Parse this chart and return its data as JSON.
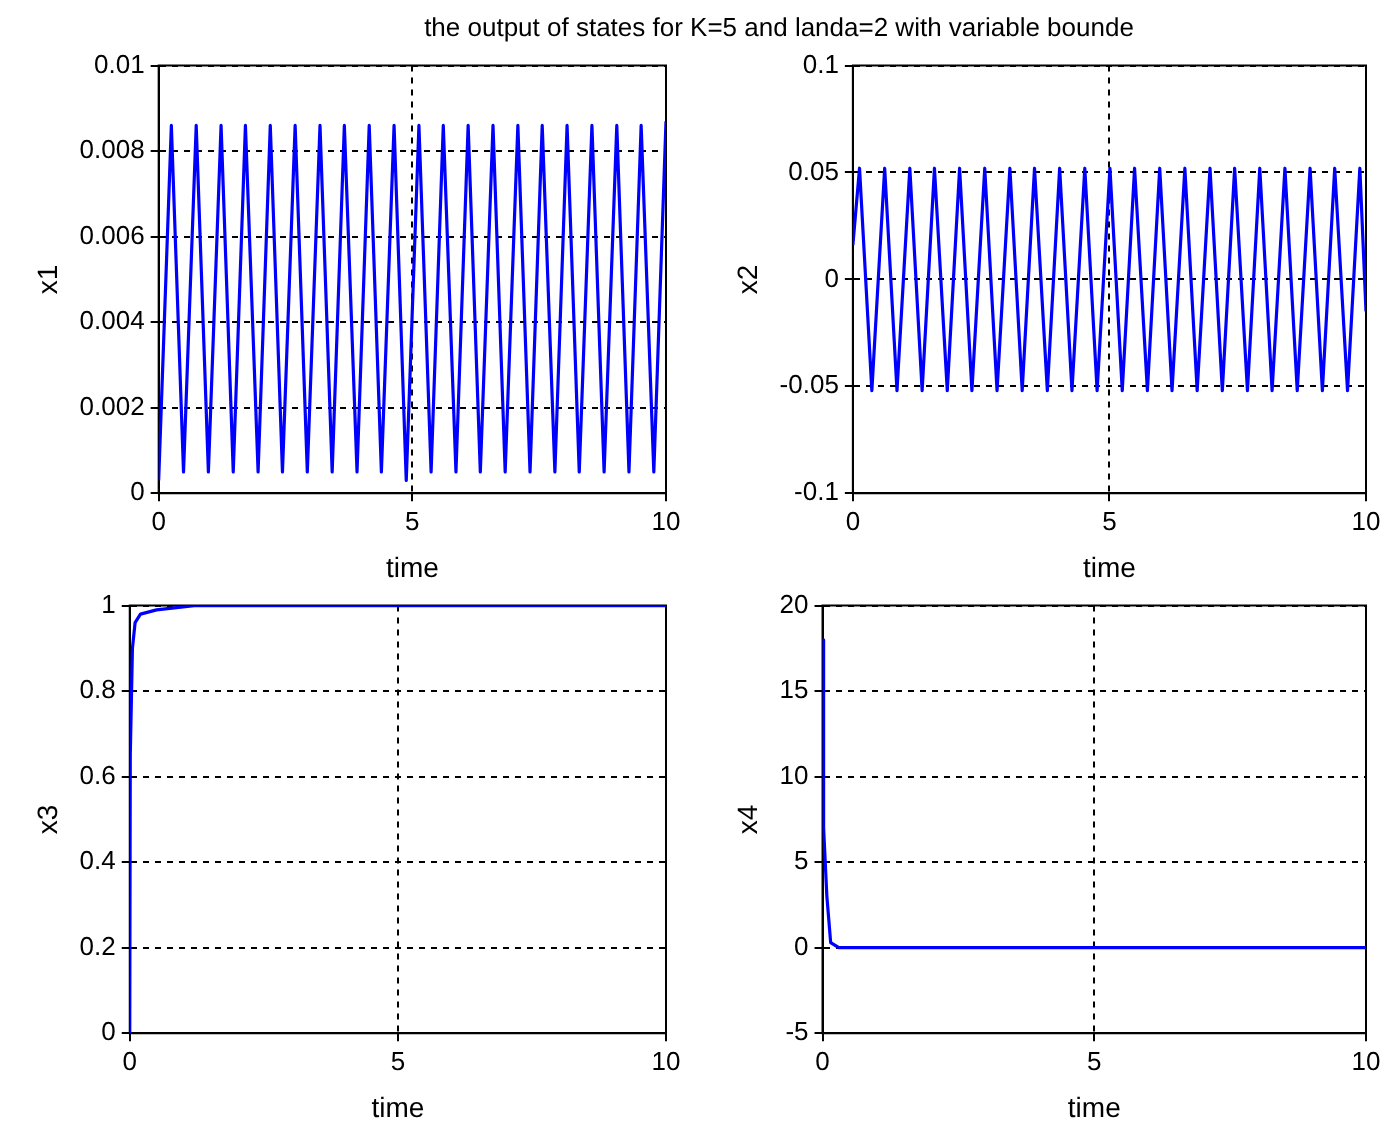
{
  "chart_data": [
    {
      "type": "line",
      "title": "the output of states for K=5 and landa=2 with variable bounde",
      "xlabel": "time",
      "ylabel": "x1",
      "xlim": [
        0,
        10
      ],
      "xticks": [
        0,
        5,
        10
      ],
      "ylim": [
        0,
        0.01
      ],
      "yticks": [
        0,
        0.002,
        0.004,
        0.006,
        0.008,
        0.01
      ],
      "grid": true,
      "legend": false,
      "marker": "none",
      "line_style": "solid",
      "series": [
        {
          "color": "#0000ff",
          "x": [
            0,
            0.25,
            0.49,
            0.74,
            0.98,
            1.23,
            1.47,
            1.71,
            1.96,
            2.2,
            2.44,
            2.69,
            2.93,
            3.18,
            3.42,
            3.66,
            3.91,
            4.15,
            4.39,
            4.64,
            4.88,
            5.13,
            5.37,
            5.61,
            5.86,
            6.1,
            6.34,
            6.59,
            6.83,
            7.08,
            7.32,
            7.56,
            7.81,
            8.05,
            8.29,
            8.54,
            8.78,
            9.03,
            9.27,
            9.51,
            9.76,
            10
          ],
          "values": [
            0.0003,
            0.0086,
            0.0005,
            0.0086,
            0.0005,
            0.0086,
            0.0005,
            0.0086,
            0.0005,
            0.0086,
            0.0005,
            0.0086,
            0.0005,
            0.0086,
            0.0005,
            0.0086,
            0.0005,
            0.0086,
            0.0005,
            0.0086,
            0.0003,
            0.0086,
            0.0005,
            0.0086,
            0.0005,
            0.0086,
            0.0005,
            0.0086,
            0.0005,
            0.0086,
            0.0005,
            0.0086,
            0.0005,
            0.0086,
            0.0005,
            0.0086,
            0.0005,
            0.0086,
            0.0005,
            0.0086,
            0.0005,
            0.0087
          ]
        }
      ]
    },
    {
      "type": "line",
      "xlabel": "time",
      "ylabel": "x2",
      "xlim": [
        0,
        10
      ],
      "xticks": [
        0,
        5,
        10
      ],
      "ylim": [
        -0.1,
        0.1
      ],
      "yticks": [
        -0.1,
        -0.05,
        0,
        0.05,
        0.1
      ],
      "grid": true,
      "legend": false,
      "marker": "none",
      "line_style": "solid",
      "series": [
        {
          "color": "#0000ff",
          "x": [
            0,
            0.13,
            0.37,
            0.62,
            0.86,
            1.11,
            1.35,
            1.59,
            1.84,
            2.08,
            2.32,
            2.57,
            2.81,
            3.06,
            3.3,
            3.54,
            3.79,
            4.03,
            4.27,
            4.52,
            4.76,
            5.01,
            5.25,
            5.49,
            5.74,
            5.98,
            6.22,
            6.47,
            6.71,
            6.96,
            7.2,
            7.44,
            7.69,
            7.93,
            8.17,
            8.42,
            8.66,
            8.91,
            9.15,
            9.39,
            9.64,
            9.88,
            10
          ],
          "values": [
            0.016,
            0.052,
            -0.052,
            0.052,
            -0.052,
            0.052,
            -0.052,
            0.052,
            -0.052,
            0.052,
            -0.052,
            0.052,
            -0.052,
            0.052,
            -0.052,
            0.052,
            -0.052,
            0.052,
            -0.052,
            0.052,
            -0.052,
            0.052,
            -0.052,
            0.052,
            -0.052,
            0.052,
            -0.052,
            0.052,
            -0.052,
            0.052,
            -0.052,
            0.052,
            -0.052,
            0.052,
            -0.052,
            0.052,
            -0.052,
            0.052,
            -0.052,
            0.052,
            -0.052,
            0.052,
            -0.015
          ]
        }
      ]
    },
    {
      "type": "line",
      "xlabel": "time",
      "ylabel": "x3",
      "xlim": [
        0,
        10
      ],
      "xticks": [
        0,
        5,
        10
      ],
      "ylim": [
        0,
        1
      ],
      "yticks": [
        0,
        0.2,
        0.4,
        0.6,
        0.8,
        1
      ],
      "grid": true,
      "legend": false,
      "marker": "none",
      "line_style": "solid",
      "series": [
        {
          "color": "#0000ff",
          "x": [
            0,
            0.01,
            0.05,
            0.1,
            0.2,
            0.5,
            1.2,
            10
          ],
          "values": [
            0,
            0.65,
            0.9,
            0.96,
            0.98,
            0.99,
            1,
            1
          ]
        }
      ]
    },
    {
      "type": "line",
      "xlabel": "time",
      "ylabel": "x4",
      "xlim": [
        0,
        10
      ],
      "xticks": [
        0,
        5,
        10
      ],
      "ylim": [
        -5,
        20
      ],
      "yticks": [
        -5,
        0,
        5,
        10,
        15,
        20
      ],
      "grid": true,
      "legend": false,
      "marker": "none",
      "line_style": "solid",
      "series": [
        {
          "color": "#0000ff",
          "x": [
            0,
            0.02,
            0.08,
            0.15,
            0.3,
            10
          ],
          "values": [
            18,
            7,
            3,
            0.3,
            0,
            0
          ]
        }
      ]
    }
  ]
}
